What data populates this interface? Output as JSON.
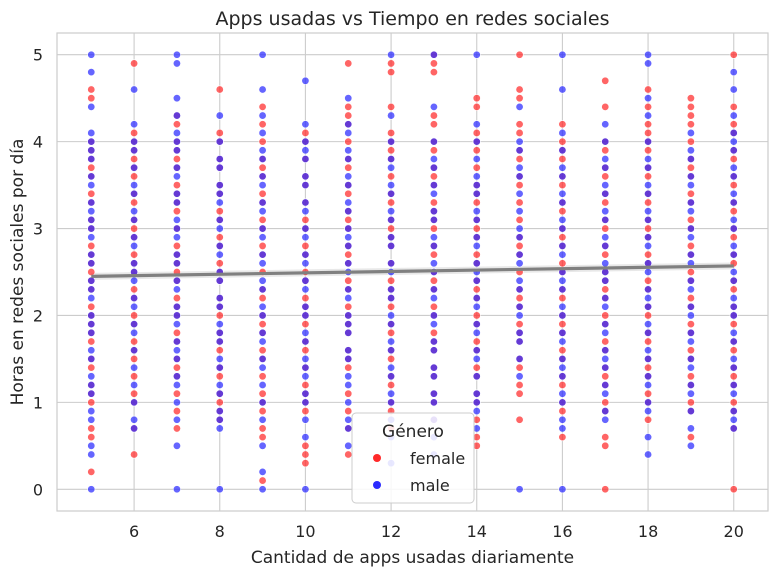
{
  "chart_data": {
    "type": "scatter",
    "title": "Apps usadas vs Tiempo en redes sociales",
    "xlabel": "Cantidad de apps usadas diariamente",
    "ylabel": "Horas en redes sociales por día",
    "xlim": [
      4.2,
      20.8
    ],
    "ylim": [
      -0.25,
      5.25
    ],
    "xticks": [
      6,
      8,
      10,
      12,
      14,
      16,
      18,
      20
    ],
    "yticks": [
      0,
      1,
      2,
      3,
      4,
      5
    ],
    "grid": true,
    "legend": {
      "title": "Género",
      "placement": "bottom-center",
      "entries": [
        {
          "label": "female",
          "color": "#ff2a2a"
        },
        {
          "label": "male",
          "color": "#2a2aff"
        }
      ]
    },
    "colors": {
      "female": "#ff2a2a",
      "male": "#2a2aff",
      "overlap": "#8e1a8e",
      "regression": "#808080",
      "grid": "#cccccc"
    },
    "x_values": [
      5,
      6,
      7,
      8,
      9,
      10,
      11,
      12,
      13,
      14,
      15,
      16,
      17,
      18,
      19,
      20
    ],
    "y_step": 0.1,
    "regression": {
      "x": [
        5,
        20
      ],
      "y": [
        2.45,
        2.57
      ],
      "confidence_band": 0.04
    },
    "series": [
      {
        "name": "female",
        "color": "#ff2a2a",
        "points": {
          "5": [
            0.2,
            0.6,
            0.7,
            1.0,
            1.1,
            1.2,
            1.4,
            1.5,
            1.7,
            1.8,
            1.9,
            2.0,
            2.1,
            2.3,
            2.4,
            2.5,
            2.6,
            2.7,
            2.8,
            3.0,
            3.1,
            3.3,
            3.4,
            3.6,
            3.7,
            3.8,
            3.9,
            4.0,
            4.5,
            4.6
          ],
          "6": [
            0.4,
            0.7,
            1.0,
            1.1,
            1.3,
            1.5,
            1.6,
            1.7,
            1.9,
            2.0,
            2.2,
            2.3,
            2.5,
            2.6,
            2.7,
            2.9,
            3.0,
            3.1,
            3.3,
            3.4,
            3.6,
            3.7,
            3.8,
            3.9,
            4.0,
            4.1,
            4.9
          ],
          "7": [
            0.7,
            0.9,
            1.1,
            1.3,
            1.4,
            1.5,
            1.7,
            1.8,
            2.0,
            2.1,
            2.2,
            2.4,
            2.5,
            2.6,
            2.7,
            2.8,
            3.0,
            3.2,
            3.3,
            3.4,
            3.5,
            3.7,
            3.8,
            3.9,
            4.0,
            4.2,
            4.3
          ],
          "8": [
            0.8,
            0.9,
            1.0,
            1.1,
            1.3,
            1.4,
            1.6,
            1.7,
            1.8,
            2.0,
            2.1,
            2.2,
            2.4,
            2.5,
            2.6,
            2.8,
            2.9,
            3.1,
            3.2,
            3.4,
            3.5,
            3.7,
            3.8,
            4.0,
            4.1,
            4.6
          ],
          "9": [
            0.1,
            0.6,
            0.7,
            0.9,
            1.0,
            1.1,
            1.3,
            1.5,
            1.6,
            1.8,
            1.9,
            2.0,
            2.2,
            2.3,
            2.5,
            2.7,
            2.8,
            3.0,
            3.1,
            3.3,
            3.4,
            3.6,
            3.7,
            3.8,
            4.0,
            4.2,
            4.4
          ],
          "10": [
            0.3,
            0.4,
            0.5,
            0.9,
            1.0,
            1.1,
            1.2,
            1.4,
            1.6,
            1.7,
            1.9,
            2.0,
            2.1,
            2.2,
            2.4,
            2.5,
            2.7,
            2.8,
            3.0,
            3.1,
            3.3,
            3.5,
            3.6,
            3.8,
            4.0,
            4.1
          ],
          "11": [
            0.4,
            0.7,
            0.9,
            1.1,
            1.4,
            1.5,
            1.6,
            1.8,
            1.9,
            2.0,
            2.1,
            2.3,
            2.4,
            2.6,
            2.7,
            2.8,
            3.0,
            3.1,
            3.2,
            3.4,
            3.5,
            3.7,
            3.8,
            4.0,
            4.2,
            4.3,
            4.4,
            4.9
          ],
          "12": [
            0.7,
            0.9,
            1.0,
            1.2,
            1.3,
            1.5,
            1.6,
            1.8,
            1.9,
            2.1,
            2.2,
            2.3,
            2.4,
            2.6,
            2.8,
            2.9,
            3.0,
            3.1,
            3.3,
            3.4,
            3.6,
            3.8,
            3.9,
            4.0,
            4.1,
            4.4,
            4.8,
            4.9
          ],
          "13": [
            0.8,
            1.0,
            1.1,
            1.3,
            1.4,
            1.6,
            1.7,
            1.8,
            2.0,
            2.1,
            2.3,
            2.4,
            2.5,
            2.7,
            2.8,
            3.0,
            3.1,
            3.2,
            3.3,
            3.5,
            3.6,
            3.7,
            3.9,
            4.0,
            4.2,
            4.3,
            4.8,
            4.9,
            5.0
          ],
          "14": [
            0.5,
            0.6,
            0.8,
            1.0,
            1.1,
            1.3,
            1.4,
            1.6,
            1.7,
            1.9,
            2.0,
            2.2,
            2.3,
            2.4,
            2.6,
            2.7,
            2.9,
            3.0,
            3.1,
            3.3,
            3.4,
            3.5,
            3.7,
            3.9,
            4.0,
            4.1,
            4.4,
            4.5
          ],
          "15": [
            0.8,
            1.1,
            1.2,
            1.4,
            1.5,
            1.7,
            1.8,
            1.9,
            2.1,
            2.2,
            2.3,
            2.5,
            2.7,
            2.8,
            2.9,
            3.1,
            3.3,
            3.5,
            3.6,
            3.8,
            3.9,
            4.1,
            4.2,
            4.5,
            4.6,
            5.0
          ],
          "16": [
            0.6,
            0.9,
            1.0,
            1.2,
            1.3,
            1.5,
            1.6,
            1.8,
            1.9,
            2.0,
            2.2,
            2.3,
            2.5,
            2.6,
            2.8,
            2.9,
            3.0,
            3.2,
            3.3,
            3.5,
            3.6,
            3.8,
            3.9,
            4.0,
            4.2
          ],
          "17": [
            0.0,
            0.5,
            0.6,
            0.9,
            1.0,
            1.2,
            1.3,
            1.4,
            1.6,
            1.7,
            1.9,
            2.0,
            2.2,
            2.3,
            2.4,
            2.5,
            2.7,
            2.8,
            3.0,
            3.1,
            3.3,
            3.4,
            3.6,
            3.7,
            3.9,
            4.0,
            4.4,
            4.7
          ],
          "18": [
            0.8,
            1.0,
            1.1,
            1.3,
            1.4,
            1.5,
            1.7,
            1.8,
            2.0,
            2.1,
            2.3,
            2.4,
            2.6,
            2.7,
            2.9,
            3.0,
            3.1,
            3.3,
            3.4,
            3.6,
            3.7,
            3.9,
            4.0,
            4.1,
            4.2,
            4.4,
            4.6
          ],
          "19": [
            0.6,
            0.9,
            1.0,
            1.2,
            1.3,
            1.5,
            1.6,
            1.8,
            1.9,
            2.1,
            2.2,
            2.4,
            2.5,
            2.7,
            2.8,
            3.0,
            3.1,
            3.3,
            3.4,
            3.6,
            3.7,
            3.8,
            4.0,
            4.2,
            4.3,
            4.4,
            4.5
          ],
          "20": [
            0.0,
            0.7,
            0.9,
            1.0,
            1.2,
            1.3,
            1.4,
            1.6,
            1.7,
            1.9,
            2.0,
            2.1,
            2.3,
            2.4,
            2.6,
            2.7,
            2.9,
            3.0,
            3.2,
            3.3,
            3.5,
            3.6,
            3.8,
            3.9,
            4.1,
            4.2,
            4.4,
            5.0
          ]
        }
      },
      {
        "name": "male",
        "color": "#2a2aff",
        "points": {
          "5": [
            0.0,
            0.4,
            0.5,
            0.8,
            0.9,
            1.1,
            1.2,
            1.3,
            1.5,
            1.6,
            1.8,
            1.9,
            2.0,
            2.2,
            2.3,
            2.4,
            2.6,
            2.7,
            2.9,
            3.0,
            3.1,
            3.2,
            3.3,
            3.5,
            3.6,
            3.8,
            3.9,
            4.0,
            4.1,
            4.4,
            4.8,
            5.0
          ],
          "6": [
            0.7,
            0.8,
            1.0,
            1.2,
            1.4,
            1.6,
            1.8,
            1.9,
            2.1,
            2.2,
            2.4,
            2.5,
            2.6,
            2.8,
            2.9,
            3.1,
            3.2,
            3.4,
            3.5,
            3.7,
            3.9,
            4.0,
            4.2,
            4.6
          ],
          "7": [
            0.0,
            0.5,
            0.8,
            1.0,
            1.2,
            1.3,
            1.5,
            1.6,
            1.7,
            1.9,
            2.0,
            2.1,
            2.3,
            2.4,
            2.6,
            2.7,
            2.9,
            3.0,
            3.1,
            3.3,
            3.4,
            3.6,
            3.7,
            3.9,
            4.0,
            4.1,
            4.3,
            4.5,
            4.9,
            5.0
          ],
          "8": [
            0.0,
            0.7,
            0.8,
            0.9,
            1.1,
            1.2,
            1.4,
            1.5,
            1.7,
            1.8,
            1.9,
            2.1,
            2.2,
            2.4,
            2.5,
            2.7,
            2.8,
            3.0,
            3.1,
            3.3,
            3.4,
            3.5,
            3.7,
            3.8,
            4.0,
            4.3
          ],
          "9": [
            0.0,
            0.2,
            0.5,
            0.8,
            1.0,
            1.2,
            1.4,
            1.5,
            1.7,
            1.8,
            2.0,
            2.1,
            2.3,
            2.4,
            2.6,
            2.7,
            2.9,
            3.0,
            3.2,
            3.3,
            3.5,
            3.6,
            3.8,
            3.9,
            4.1,
            4.3,
            4.6,
            5.0
          ],
          "10": [
            0.0,
            0.6,
            0.8,
            1.0,
            1.1,
            1.3,
            1.4,
            1.5,
            1.7,
            1.8,
            2.0,
            2.1,
            2.3,
            2.4,
            2.6,
            2.7,
            2.9,
            3.0,
            3.2,
            3.3,
            3.5,
            3.6,
            3.8,
            3.9,
            4.0,
            4.2,
            4.7
          ],
          "11": [
            0.5,
            0.7,
            0.8,
            1.0,
            1.2,
            1.3,
            1.5,
            1.6,
            1.8,
            1.9,
            2.0,
            2.2,
            2.3,
            2.5,
            2.6,
            2.8,
            2.9,
            3.0,
            3.2,
            3.3,
            3.5,
            3.6,
            3.8,
            3.9,
            4.1,
            4.2,
            4.5
          ],
          "12": [
            0.3,
            0.6,
            0.8,
            1.0,
            1.1,
            1.3,
            1.4,
            1.6,
            1.7,
            1.9,
            2.0,
            2.2,
            2.3,
            2.5,
            2.6,
            2.8,
            2.9,
            3.1,
            3.2,
            3.4,
            3.5,
            3.7,
            3.8,
            4.0,
            4.3,
            5.0
          ],
          "13": [
            0.4,
            0.6,
            0.8,
            1.0,
            1.1,
            1.3,
            1.4,
            1.6,
            1.7,
            1.9,
            2.0,
            2.2,
            2.3,
            2.5,
            2.6,
            2.8,
            2.9,
            3.1,
            3.2,
            3.4,
            3.5,
            3.7,
            3.8,
            4.0,
            4.4,
            5.0
          ],
          "14": [
            0.7,
            0.9,
            1.0,
            1.1,
            1.3,
            1.5,
            1.6,
            1.8,
            1.9,
            2.1,
            2.2,
            2.4,
            2.5,
            2.6,
            2.8,
            2.9,
            3.1,
            3.2,
            3.4,
            3.5,
            3.6,
            3.8,
            4.0,
            4.2,
            5.0
          ],
          "15": [
            0.0,
            1.3,
            1.5,
            1.7,
            1.8,
            2.0,
            2.1,
            2.3,
            2.4,
            2.6,
            2.7,
            2.9,
            3.0,
            3.2,
            3.4,
            3.6,
            3.7,
            3.9,
            4.0,
            4.4
          ],
          "16": [
            0.0,
            0.7,
            0.8,
            1.0,
            1.1,
            1.3,
            1.4,
            1.5,
            1.7,
            1.8,
            2.0,
            2.1,
            2.3,
            2.4,
            2.5,
            2.7,
            2.8,
            3.0,
            3.1,
            3.3,
            3.4,
            3.6,
            3.7,
            3.9,
            4.1,
            4.6,
            5.0
          ],
          "17": [
            0.8,
            0.9,
            1.1,
            1.2,
            1.4,
            1.5,
            1.6,
            1.8,
            1.9,
            2.1,
            2.2,
            2.4,
            2.5,
            2.6,
            2.8,
            2.9,
            3.1,
            3.2,
            3.4,
            3.5,
            3.7,
            3.8,
            4.0,
            4.2
          ],
          "18": [
            0.4,
            0.6,
            0.9,
            1.0,
            1.2,
            1.3,
            1.5,
            1.6,
            1.8,
            1.9,
            2.1,
            2.2,
            2.3,
            2.5,
            2.6,
            2.8,
            2.9,
            3.1,
            3.2,
            3.4,
            3.5,
            3.7,
            3.8,
            4.0,
            4.3,
            4.5,
            4.9,
            5.0
          ],
          "19": [
            0.5,
            0.7,
            0.9,
            1.1,
            1.2,
            1.4,
            1.5,
            1.7,
            1.8,
            2.0,
            2.1,
            2.3,
            2.4,
            2.6,
            2.7,
            2.9,
            3.0,
            3.2,
            3.3,
            3.5,
            3.6,
            3.8,
            3.9,
            4.1
          ],
          "20": [
            0.7,
            0.8,
            0.9,
            1.1,
            1.2,
            1.4,
            1.5,
            1.7,
            1.8,
            2.0,
            2.1,
            2.2,
            2.4,
            2.5,
            2.7,
            2.8,
            3.0,
            3.1,
            3.3,
            3.4,
            3.6,
            3.7,
            3.9,
            4.0,
            4.1,
            4.3,
            4.6,
            4.8
          ]
        }
      }
    ]
  }
}
